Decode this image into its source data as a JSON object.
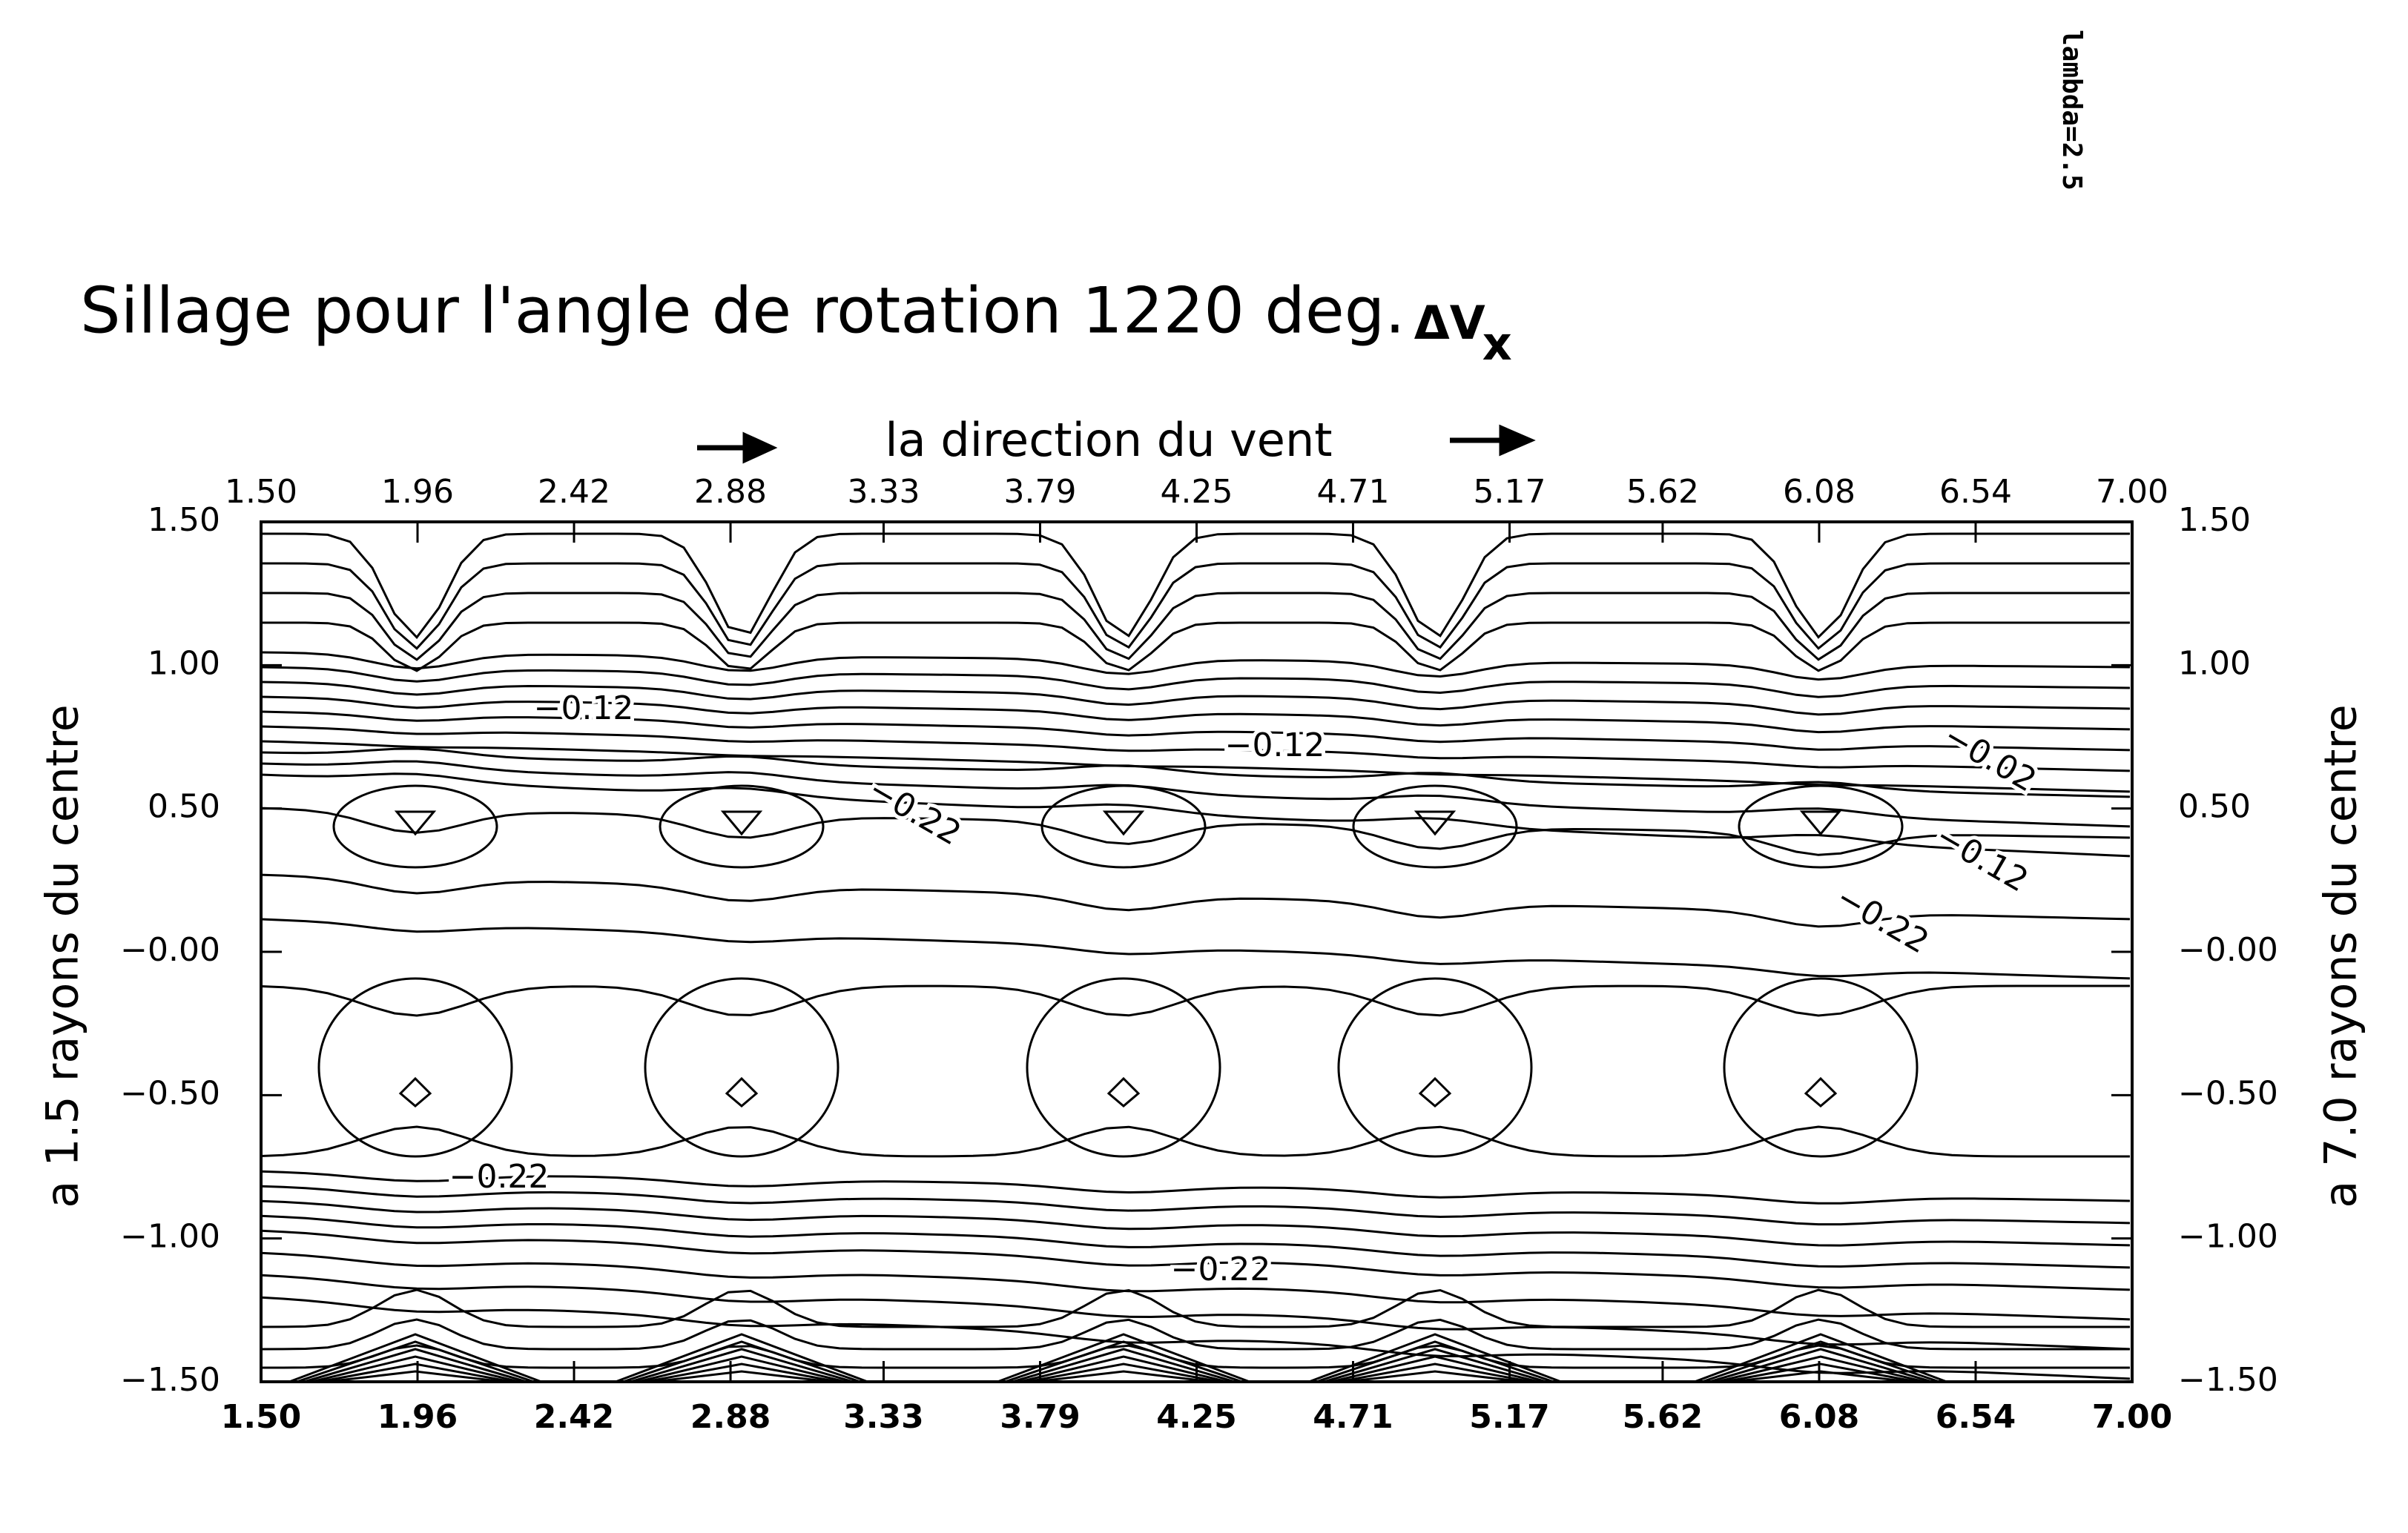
{
  "chart_data": {
    "type": "contour",
    "title": "Sillage pour l'angle de rotation 1220 deg.",
    "quantity": "ΔV",
    "quantity_subscript": "x",
    "note": "lambda=2.5",
    "top_xlabel": "la direction du vent",
    "ylabel": "a 1.5 rayons du centre",
    "y2label": "a 7.0 rayons du centre",
    "xlim": [
      1.5,
      7.0
    ],
    "xticks": [
      {
        "value": 1.5,
        "label": "1.50"
      },
      1.96,
      2.42,
      2.88,
      3.33,
      3.79,
      4.25,
      4.71,
      5.17,
      5.62,
      6.08,
      6.54,
      {
        "value": 7.0,
        "label": "7.00"
      }
    ],
    "ylim": [
      -1.5,
      1.5
    ],
    "yticks": [
      {
        "value": 1.5,
        "label": "1.50"
      },
      {
        "value": 1.0,
        "label": "1.00"
      },
      {
        "value": 0.5,
        "label": "0.50"
      },
      {
        "value": 0,
        "label": "−0.00"
      },
      {
        "value": -0.5,
        "label": "−0.50"
      },
      {
        "value": -1.0,
        "label": "−1.00"
      },
      {
        "value": -1.5,
        "label": "−1.50"
      }
    ],
    "y2lim": [
      -1.5,
      1.5
    ],
    "y2ticks": [
      {
        "value": 1.5,
        "label": "1.50"
      },
      {
        "value": 1.0,
        "label": "1.00"
      },
      {
        "value": 0.5,
        "label": "0.50"
      },
      {
        "value": 0,
        "label": "−0.00"
      },
      {
        "value": -0.5,
        "label": "−0.50"
      },
      {
        "value": -1.0,
        "label": "−1.00"
      },
      {
        "value": -1.5,
        "label": "−1.50"
      }
    ],
    "contour_labels": [
      "−0.12",
      "−0.12",
      "−0.02",
      "−0.22",
      "−0.12",
      "−0.22",
      "−0.22",
      "−0.22"
    ],
    "color": "#000000"
  }
}
